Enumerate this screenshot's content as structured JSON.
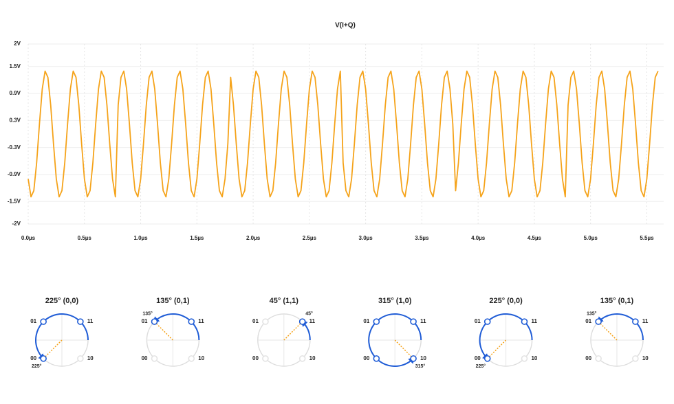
{
  "chart_data": {
    "type": "line",
    "title": "V(I+Q)",
    "color": "#f5a31a",
    "grid": true,
    "xlim": [
      0,
      5.65
    ],
    "ylim": [
      -2,
      2
    ],
    "xticks": [
      {
        "value": 0,
        "label": "0.0µs"
      },
      {
        "value": 0.5,
        "label": "0.5µs"
      },
      {
        "value": 1,
        "label": "1.0µs"
      },
      {
        "value": 1.5,
        "label": "1.5µs"
      },
      {
        "value": 2,
        "label": "2.0µs"
      },
      {
        "value": 2.5,
        "label": "2.5µs"
      },
      {
        "value": 3,
        "label": "3.0µs"
      },
      {
        "value": 3.5,
        "label": "3.5µs"
      },
      {
        "value": 4,
        "label": "4.0µs"
      },
      {
        "value": 4.5,
        "label": "4.5µs"
      },
      {
        "value": 5,
        "label": "5.0µs"
      },
      {
        "value": 5.5,
        "label": "5.5µs"
      }
    ],
    "yticks": [
      {
        "value": 2,
        "label": "2V"
      },
      {
        "value": 1.5,
        "label": "1.5V"
      },
      {
        "value": 0.9,
        "label": "0.9V"
      },
      {
        "value": 0.3,
        "label": "0.3V"
      },
      {
        "value": -0.3,
        "label": "-0.3V"
      },
      {
        "value": -0.9,
        "label": "-0.9V"
      },
      {
        "value": -1.5,
        "label": "-1.5V"
      },
      {
        "value": -2,
        "label": "-2V"
      }
    ],
    "x": [
      0,
      0.025,
      0.05,
      0.075,
      0.1,
      0.125,
      0.15,
      0.175,
      0.2,
      0.225,
      0.25,
      0.275,
      0.3,
      0.325,
      0.35,
      0.375,
      0.4,
      0.425,
      0.45,
      0.475,
      0.5,
      0.525,
      0.55,
      0.575,
      0.6,
      0.625,
      0.65,
      0.675,
      0.7,
      0.725,
      0.75,
      0.775,
      0.8,
      0.825,
      0.85,
      0.875,
      0.9,
      0.925,
      0.95,
      0.975,
      1,
      1.025,
      1.05,
      1.075,
      1.1,
      1.125,
      1.15,
      1.175,
      1.2,
      1.225,
      1.25,
      1.275,
      1.3,
      1.325,
      1.35,
      1.375,
      1.4,
      1.425,
      1.45,
      1.475,
      1.5,
      1.525,
      1.55,
      1.575,
      1.6,
      1.625,
      1.65,
      1.675,
      1.7,
      1.725,
      1.75,
      1.775,
      1.8,
      1.825,
      1.85,
      1.875,
      1.9,
      1.925,
      1.95,
      1.975,
      2,
      2.025,
      2.05,
      2.075,
      2.1,
      2.125,
      2.15,
      2.175,
      2.2,
      2.225,
      2.25,
      2.275,
      2.3,
      2.325,
      2.35,
      2.375,
      2.4,
      2.425,
      2.45,
      2.475,
      2.5,
      2.525,
      2.55,
      2.575,
      2.6,
      2.625,
      2.65,
      2.675,
      2.7,
      2.725,
      2.75,
      2.775,
      2.8,
      2.825,
      2.85,
      2.875,
      2.9,
      2.925,
      2.95,
      2.975,
      3,
      3.025,
      3.05,
      3.075,
      3.1,
      3.125,
      3.15,
      3.175,
      3.2,
      3.225,
      3.25,
      3.275,
      3.3,
      3.325,
      3.35,
      3.375,
      3.4,
      3.425,
      3.45,
      3.475,
      3.5,
      3.525,
      3.55,
      3.575,
      3.6,
      3.625,
      3.65,
      3.675,
      3.7,
      3.725,
      3.75,
      3.775,
      3.8,
      3.825,
      3.85,
      3.875,
      3.9,
      3.925,
      3.95,
      3.975,
      4,
      4.025,
      4.05,
      4.075,
      4.1,
      4.125,
      4.15,
      4.175,
      4.2,
      4.225,
      4.25,
      4.275,
      4.3,
      4.325,
      4.35,
      4.375,
      4.4,
      4.425,
      4.45,
      4.475,
      4.5,
      4.525,
      4.55,
      4.575,
      4.6,
      4.625,
      4.65,
      4.675,
      4.7,
      4.725,
      4.75,
      4.775,
      4.8,
      4.825,
      4.85,
      4.875,
      4.9,
      4.925,
      4.95,
      4.975,
      5,
      5.025,
      5.05,
      5.075,
      5.1,
      5.125,
      5.15,
      5.175,
      5.2,
      5.225,
      5.25,
      5.275,
      5.3,
      5.325,
      5.35,
      5.375,
      5.4,
      5.425,
      5.45,
      5.475,
      5.5,
      5.525,
      5.55,
      5.575,
      5.6
    ],
    "values": [
      -1,
      -1.397,
      -1.26,
      -0.642,
      0.221,
      1,
      1.397,
      1.26,
      0.642,
      -0.221,
      -1,
      -1.397,
      -1.26,
      -0.642,
      0.221,
      1,
      1.397,
      1.26,
      0.642,
      -0.221,
      -1,
      -1.397,
      -1.26,
      -0.642,
      0.221,
      1,
      1.397,
      1.26,
      0.642,
      -0.221,
      -1,
      -1.397,
      0.642,
      1.26,
      1.397,
      1,
      0.221,
      -0.642,
      -1.26,
      -1.397,
      -1,
      -0.221,
      0.642,
      1.26,
      1.397,
      1,
      0.221,
      -0.642,
      -1.26,
      -1.397,
      -1,
      -0.221,
      0.642,
      1.26,
      1.397,
      1,
      0.221,
      -0.642,
      -1.26,
      -1.397,
      -1,
      -0.221,
      0.642,
      1.26,
      1.397,
      1,
      0.221,
      -0.642,
      -1.26,
      -1.397,
      -1,
      -0.221,
      1.26,
      0.642,
      -0.221,
      -1,
      -1.397,
      -1.26,
      -0.642,
      0.221,
      1,
      1.397,
      1.26,
      0.642,
      -0.221,
      -1,
      -1.397,
      -1.26,
      -0.642,
      0.221,
      1,
      1.397,
      1.26,
      0.642,
      -0.221,
      -1,
      -1.397,
      -1.26,
      -0.642,
      0.221,
      1,
      1.397,
      1.26,
      0.642,
      -0.221,
      -1,
      -1.397,
      -1.26,
      -0.642,
      0.221,
      1,
      1.397,
      -0.642,
      -1.26,
      -1.397,
      -1,
      -0.221,
      0.642,
      1.26,
      1.397,
      1,
      0.221,
      -0.642,
      -1.26,
      -1.397,
      -1,
      -0.221,
      0.642,
      1.26,
      1.397,
      1,
      0.221,
      -0.642,
      -1.26,
      -1.397,
      -1,
      -0.221,
      0.642,
      1.26,
      1.397,
      1,
      0.221,
      -0.642,
      -1.26,
      -1.397,
      -1,
      -0.221,
      0.642,
      1.26,
      1.397,
      1,
      0.221,
      -1.26,
      -0.642,
      0.221,
      1,
      1.397,
      1.26,
      0.642,
      -0.221,
      -1,
      -1.397,
      -1.26,
      -0.642,
      0.221,
      1,
      1.397,
      1.26,
      0.642,
      -0.221,
      -1,
      -1.397,
      -1.26,
      -0.642,
      0.221,
      1,
      1.397,
      1.26,
      0.642,
      -0.221,
      -1,
      -1.397,
      -1.26,
      -0.642,
      0.221,
      1,
      1.397,
      1.26,
      0.642,
      -0.221,
      -1,
      -1.397,
      0.642,
      1.26,
      1.397,
      1,
      0.221,
      -0.642,
      -1.26,
      -1.397,
      -1,
      -0.221,
      0.642,
      1.26,
      1.397,
      1,
      0.221,
      -0.642,
      -1.26,
      -1.397,
      -1,
      -0.221,
      0.642,
      1.26,
      1.397,
      1,
      0.221,
      -0.642,
      -1.26,
      -1.397,
      -1,
      -0.221,
      0.642,
      1.26,
      1.397
    ]
  },
  "point_labels": [
    "11",
    "01",
    "00",
    "10"
  ],
  "panels": [
    {
      "title": "225° (0,0)",
      "angle": {
        "value": 225,
        "label": "225°"
      }
    },
    {
      "title": "135° (0,1)",
      "angle": {
        "value": 135,
        "label": "135°"
      }
    },
    {
      "title": "45° (1,1)",
      "angle": {
        "value": 45,
        "label": "45°"
      }
    },
    {
      "title": "315° (1,0)",
      "angle": {
        "value": 315,
        "label": "315°"
      }
    },
    {
      "title": "225° (0,0)",
      "angle": {
        "value": 225,
        "label": "225°"
      }
    },
    {
      "title": "135° (0,1)",
      "angle": {
        "value": 135,
        "label": "135°"
      }
    }
  ]
}
